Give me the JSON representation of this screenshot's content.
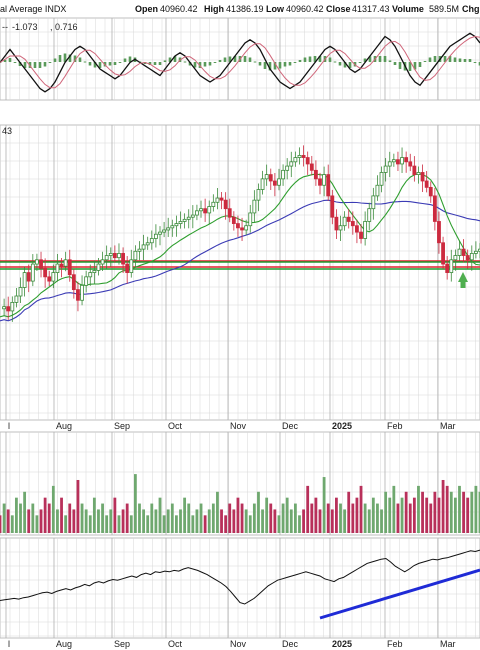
{
  "header": {
    "title": "al Average INDX",
    "ohlc_labels": [
      "Open",
      "High",
      "Low",
      "Close",
      "Volume",
      "Chg"
    ],
    "ohlc_values": [
      "40960.42",
      "41386.19",
      "40960.42",
      "41317.43",
      "589.5M",
      ""
    ],
    "macd_values": [
      "-1.073",
      "0.716"
    ],
    "price_label_fragment": "43"
  },
  "colors": {
    "up": "#3a8a3a",
    "down": "#cc2a3f",
    "vol_up": "#6fa86f",
    "vol_down": "#b8305a",
    "ma_short": "#2e9e2e",
    "ma_long": "#3b3bb5",
    "support_red": "#e0202e",
    "support_green": "#1f9a2e",
    "arrow": "#4fae4f",
    "trendline": "#1f2bd6",
    "grid": "#d7d7d7",
    "macd_line": "#111111",
    "macd_signal": "#d0667a",
    "macd_hist": "#5a9a5a"
  },
  "chart_data": {
    "type": "candlestick",
    "x_axis_labels_top": [
      "l",
      "Aug",
      "Sep",
      "Oct",
      "Nov",
      "Dec",
      "2025",
      "Feb",
      "Mar"
    ],
    "x_axis_labels_bottom": [
      "l",
      "Aug",
      "Sep",
      "Oct",
      "Nov",
      "Dec",
      "2025",
      "Feb",
      "Mar"
    ],
    "price_path": [
      0.83,
      0.82,
      0.84,
      0.8,
      0.77,
      0.73,
      0.66,
      0.7,
      0.62,
      0.6,
      0.64,
      0.68,
      0.7,
      0.66,
      0.62,
      0.63,
      0.6,
      0.67,
      0.74,
      0.79,
      0.72,
      0.68,
      0.66,
      0.65,
      0.62,
      0.6,
      0.58,
      0.57,
      0.59,
      0.57,
      0.62,
      0.66,
      0.6,
      0.56,
      0.55,
      0.53,
      0.52,
      0.5,
      0.48,
      0.47,
      0.46,
      0.45,
      0.44,
      0.43,
      0.42,
      0.41,
      0.4,
      0.39,
      0.37,
      0.36,
      0.38,
      0.35,
      0.33,
      0.31,
      0.32,
      0.36,
      0.4,
      0.43,
      0.45,
      0.46,
      0.44,
      0.38,
      0.32,
      0.27,
      0.22,
      0.2,
      0.23,
      0.25,
      0.22,
      0.18,
      0.16,
      0.14,
      0.12,
      0.11,
      0.12,
      0.15,
      0.18,
      0.22,
      0.25,
      0.2,
      0.3,
      0.4,
      0.46,
      0.44,
      0.4,
      0.42,
      0.44,
      0.47,
      0.5,
      0.42,
      0.36,
      0.3,
      0.25,
      0.19,
      0.16,
      0.14,
      0.13,
      0.15,
      0.12,
      0.14,
      0.16,
      0.2,
      0.19,
      0.23,
      0.26,
      0.3,
      0.42,
      0.52,
      0.62,
      0.66,
      0.6,
      0.58,
      0.55,
      0.58,
      0.6,
      0.57,
      0.56,
      0.55
    ],
    "volume_path": [
      0.3,
      0.5,
      0.4,
      0.3,
      0.6,
      0.5,
      0.7,
      0.4,
      0.5,
      0.3,
      0.4,
      0.6,
      0.5,
      0.8,
      0.4,
      0.6,
      0.3,
      0.5,
      0.4,
      0.9,
      0.5,
      0.4,
      0.3,
      0.6,
      0.4,
      0.5,
      0.3,
      0.4,
      0.6,
      0.3,
      0.4,
      0.5,
      0.3,
      1.0,
      0.5,
      0.4,
      0.3,
      0.5,
      0.4,
      0.6,
      0.3,
      0.4,
      0.5,
      0.3,
      0.4,
      0.6,
      0.5,
      0.3,
      0.4,
      0.5,
      0.3,
      0.4,
      0.5,
      0.7,
      0.4,
      0.3,
      0.5,
      0.4,
      0.6,
      0.5,
      0.4,
      0.3,
      0.5,
      0.7,
      0.4,
      0.6,
      0.5,
      0.4,
      0.3,
      0.5,
      0.6,
      0.4,
      0.5,
      0.3,
      0.4,
      0.8,
      0.5,
      0.6,
      0.4,
      0.95,
      0.5,
      0.4,
      0.6,
      0.5,
      0.4,
      0.7,
      0.5,
      0.6,
      0.8,
      0.5,
      0.4,
      0.6,
      0.5,
      0.4,
      0.7,
      0.6,
      0.8,
      0.5,
      0.6,
      0.7,
      0.5,
      0.6,
      0.8,
      0.7,
      0.6,
      0.5,
      0.7,
      0.6,
      0.9,
      0.8,
      0.7,
      0.6,
      0.8,
      0.7,
      0.6,
      0.7,
      0.8,
      0.7
    ],
    "breadth_path": [
      0.75,
      0.74,
      0.73,
      0.72,
      0.73,
      0.71,
      0.7,
      0.68,
      0.66,
      0.64,
      0.63,
      0.65,
      0.62,
      0.6,
      0.58,
      0.6,
      0.57,
      0.55,
      0.52,
      0.54,
      0.5,
      0.48,
      0.5,
      0.47,
      0.45,
      0.46,
      0.44,
      0.42,
      0.4,
      0.42,
      0.38,
      0.36,
      0.38,
      0.34,
      0.35,
      0.33,
      0.34,
      0.32,
      0.33,
      0.3,
      0.28,
      0.3,
      0.32,
      0.35,
      0.38,
      0.42,
      0.46,
      0.5,
      0.55,
      0.62,
      0.7,
      0.78,
      0.8,
      0.76,
      0.72,
      0.66,
      0.6,
      0.54,
      0.5,
      0.46,
      0.44,
      0.42,
      0.4,
      0.38,
      0.36,
      0.34,
      0.36,
      0.38,
      0.4,
      0.44,
      0.46,
      0.48,
      0.44,
      0.42,
      0.38,
      0.34,
      0.3,
      0.26,
      0.22,
      0.2,
      0.18,
      0.16,
      0.15,
      0.2,
      0.26,
      0.3,
      0.34,
      0.3,
      0.25,
      0.22,
      0.2,
      0.18,
      0.16,
      0.17,
      0.15,
      0.14,
      0.12,
      0.1,
      0.08,
      0.06,
      0.04,
      0.05,
      0.03
    ],
    "macd_path": [
      0.5,
      0.6,
      0.7,
      0.6,
      0.5,
      0.4,
      0.3,
      0.2,
      0.1,
      0.05,
      0.1,
      0.2,
      0.35,
      0.5,
      0.6,
      0.7,
      0.75,
      0.7,
      0.6,
      0.5,
      0.4,
      0.35,
      0.3,
      0.25,
      0.3,
      0.4,
      0.5,
      0.55,
      0.5,
      0.45,
      0.4,
      0.35,
      0.3,
      0.4,
      0.5,
      0.6,
      0.65,
      0.6,
      0.5,
      0.4,
      0.3,
      0.25,
      0.2,
      0.25,
      0.3,
      0.4,
      0.5,
      0.6,
      0.7,
      0.8,
      0.85,
      0.8,
      0.7,
      0.55,
      0.4,
      0.3,
      0.2,
      0.15,
      0.1,
      0.15,
      0.2,
      0.3,
      0.4,
      0.5,
      0.6,
      0.7,
      0.75,
      0.7,
      0.6,
      0.5,
      0.4,
      0.35,
      0.4,
      0.5,
      0.6,
      0.7,
      0.8,
      0.9,
      0.85,
      0.75,
      0.6,
      0.45,
      0.3,
      0.2,
      0.15,
      0.25,
      0.35,
      0.45,
      0.55,
      0.65,
      0.75,
      0.8,
      0.85,
      0.9,
      0.95,
      0.9,
      0.8
    ],
    "support_levels": [
      "red",
      "red",
      "green",
      "green"
    ],
    "annotations": [
      "green-up-arrow-at-march-low",
      "blue-uptrend-line-on-breadth"
    ]
  }
}
